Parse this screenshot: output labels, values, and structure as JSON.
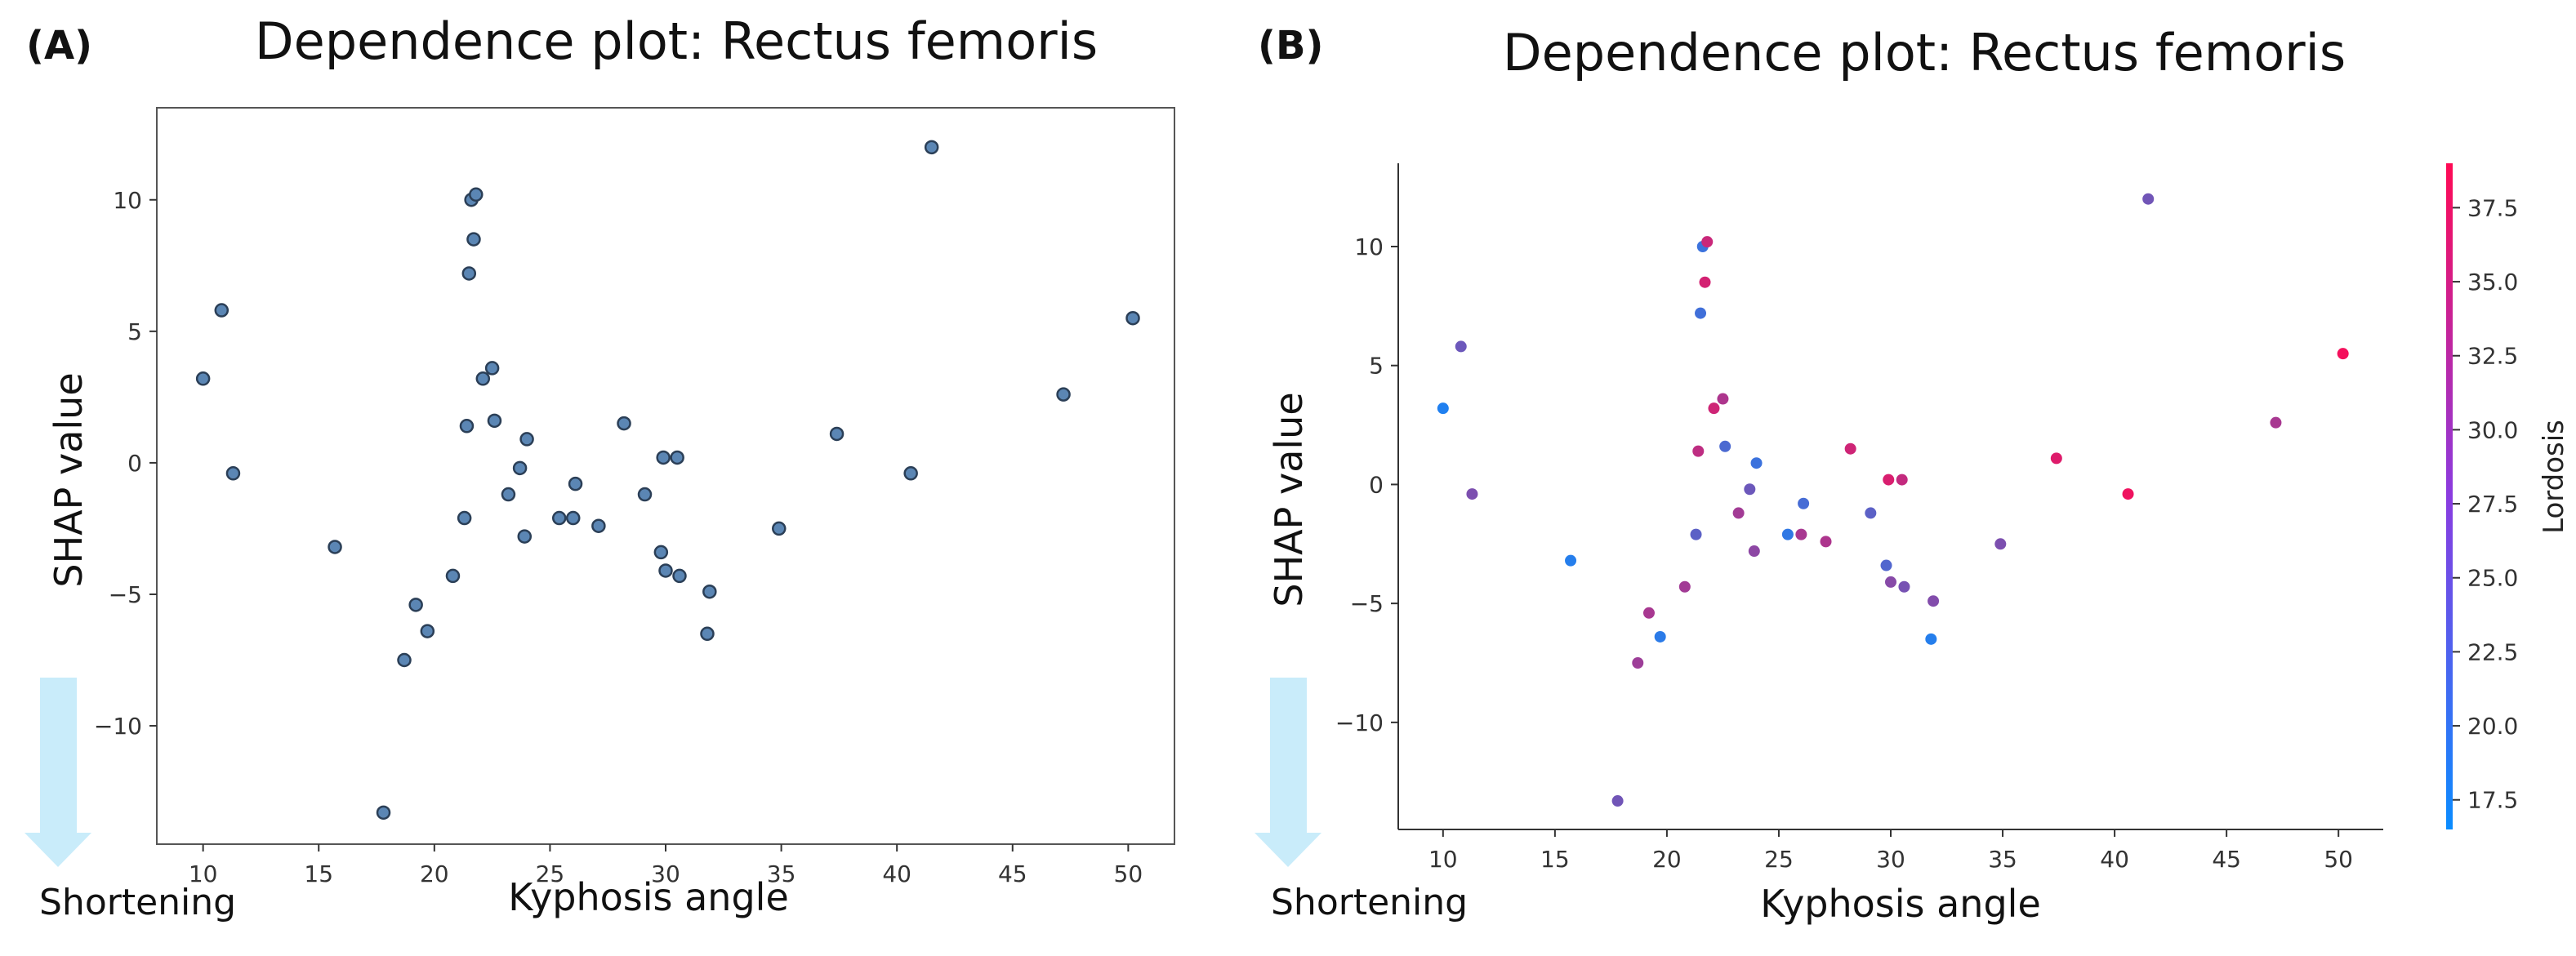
{
  "panels": {
    "a": {
      "label": "(A)",
      "title": "Dependence plot: Rectus femoris",
      "xlabel": "Kyphosis angle",
      "ylabel": "SHAP value",
      "annotation": "Shortening"
    },
    "b": {
      "label": "(B)",
      "title": "Dependence plot: Rectus femoris",
      "xlabel": "Kyphosis angle",
      "ylabel": "SHAP value",
      "annotation": "Shortening",
      "colorbar_label": "Lordosis"
    }
  },
  "colors": {
    "point_a": "#5b86b4",
    "point_a_edge": "#2b3f57",
    "arrow": "#c9ecfa",
    "cmap_low": "#0a8cff",
    "cmap_high": "#ff0a54"
  },
  "chart_data": [
    {
      "type": "scatter",
      "title": "Dependence plot: Rectus femoris",
      "xlabel": "Kyphosis angle",
      "ylabel": "SHAP value",
      "xlim": [
        8,
        52
      ],
      "ylim": [
        -14.5,
        13.5
      ],
      "xticks": [
        10,
        15,
        20,
        25,
        30,
        35,
        40,
        45,
        50
      ],
      "yticks": [
        -10,
        -5,
        0,
        5,
        10
      ],
      "x": [
        10,
        10.8,
        11.3,
        15.7,
        17.8,
        18.7,
        19.2,
        19.7,
        20.8,
        21.3,
        21.4,
        21.5,
        21.6,
        21.7,
        21.8,
        22.1,
        22.5,
        22.6,
        23.2,
        23.7,
        23.9,
        24.0,
        25.4,
        26.0,
        26.1,
        27.1,
        28.2,
        29.1,
        29.8,
        29.9,
        30.0,
        30.5,
        30.6,
        31.8,
        31.9,
        34.9,
        37.4,
        40.6,
        41.5,
        47.2,
        50.2
      ],
      "y": [
        3.2,
        5.8,
        -0.4,
        -3.2,
        -13.3,
        -7.5,
        -5.4,
        -6.4,
        -4.3,
        -2.1,
        1.4,
        7.2,
        10.0,
        8.5,
        10.2,
        3.2,
        3.6,
        1.6,
        -1.2,
        -0.2,
        -2.8,
        0.9,
        -2.1,
        -2.1,
        -0.8,
        -2.4,
        1.5,
        -1.2,
        -3.4,
        0.2,
        -4.1,
        0.2,
        -4.3,
        -6.5,
        -4.9,
        -2.5,
        1.1,
        -0.4,
        12.0,
        2.6,
        5.5
      ]
    },
    {
      "type": "scatter",
      "title": "Dependence plot: Rectus femoris",
      "xlabel": "Kyphosis angle",
      "ylabel": "SHAP value",
      "xlim": [
        8,
        52
      ],
      "ylim": [
        -14.5,
        13.5
      ],
      "xticks": [
        10,
        15,
        20,
        25,
        30,
        35,
        40,
        45,
        50
      ],
      "yticks": [
        -10,
        -5,
        0,
        5,
        10
      ],
      "colorbar": {
        "label": "Lordosis",
        "range": [
          16.5,
          39
        ],
        "ticks": [
          17.5,
          20.0,
          22.5,
          25.0,
          27.5,
          30.0,
          32.5,
          35.0,
          37.5
        ]
      },
      "x": [
        10,
        10.8,
        11.3,
        15.7,
        17.8,
        18.7,
        19.2,
        19.7,
        20.8,
        21.3,
        21.4,
        21.5,
        21.6,
        21.7,
        21.8,
        22.1,
        22.5,
        22.6,
        23.2,
        23.7,
        23.9,
        24.0,
        25.4,
        26.0,
        26.1,
        27.1,
        28.2,
        29.1,
        29.8,
        29.9,
        30.0,
        30.5,
        30.6,
        31.8,
        31.9,
        34.9,
        37.4,
        40.6,
        41.5,
        47.2,
        50.2
      ],
      "y": [
        3.2,
        5.8,
        -0.4,
        -3.2,
        -13.3,
        -7.5,
        -5.4,
        -6.4,
        -4.3,
        -2.1,
        1.4,
        7.2,
        10.0,
        8.5,
        10.2,
        3.2,
        3.6,
        1.6,
        -1.2,
        -0.2,
        -2.8,
        0.9,
        -2.1,
        -2.1,
        -0.8,
        -2.4,
        1.5,
        -1.2,
        -3.4,
        0.2,
        -4.1,
        0.2,
        -4.3,
        -6.5,
        -4.9,
        -2.5,
        1.1,
        -0.4,
        12.0,
        2.6,
        5.5
      ],
      "color_values": [
        18.5,
        25.5,
        27.0,
        19.0,
        26.0,
        30.0,
        31.0,
        19.5,
        30.5,
        24.0,
        33.0,
        21.5,
        21.0,
        35.0,
        34.0,
        34.5,
        31.5,
        22.5,
        30.5,
        25.5,
        28.5,
        21.0,
        20.0,
        31.0,
        22.0,
        31.5,
        34.5,
        24.0,
        23.0,
        35.5,
        28.0,
        33.5,
        26.5,
        19.0,
        27.5,
        27.0,
        36.0,
        37.5,
        26.0,
        31.0,
        38.0
      ]
    }
  ]
}
